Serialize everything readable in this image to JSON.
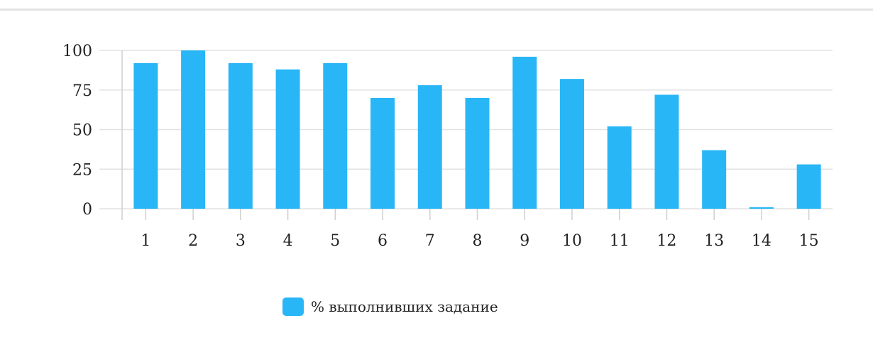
{
  "colors": {
    "bar": "#29b6f6",
    "grid": "#e2e2e2",
    "axis": "#cfcfcf",
    "text": "#222222"
  },
  "chart_data": {
    "type": "bar",
    "title": "",
    "xlabel": "",
    "ylabel": "",
    "categories": [
      "1",
      "2",
      "3",
      "4",
      "5",
      "6",
      "7",
      "8",
      "9",
      "10",
      "11",
      "12",
      "13",
      "14",
      "15"
    ],
    "series": [
      {
        "name": "% выполнивших задание",
        "values": [
          92,
          100,
          92,
          88,
          92,
          70,
          78,
          70,
          96,
          82,
          52,
          72,
          37,
          1,
          28
        ]
      }
    ],
    "yticks": [
      "0",
      "25",
      "50",
      "75",
      "100"
    ],
    "ylim": [
      0,
      100
    ],
    "grid": true,
    "legend_position": "bottom-center"
  }
}
